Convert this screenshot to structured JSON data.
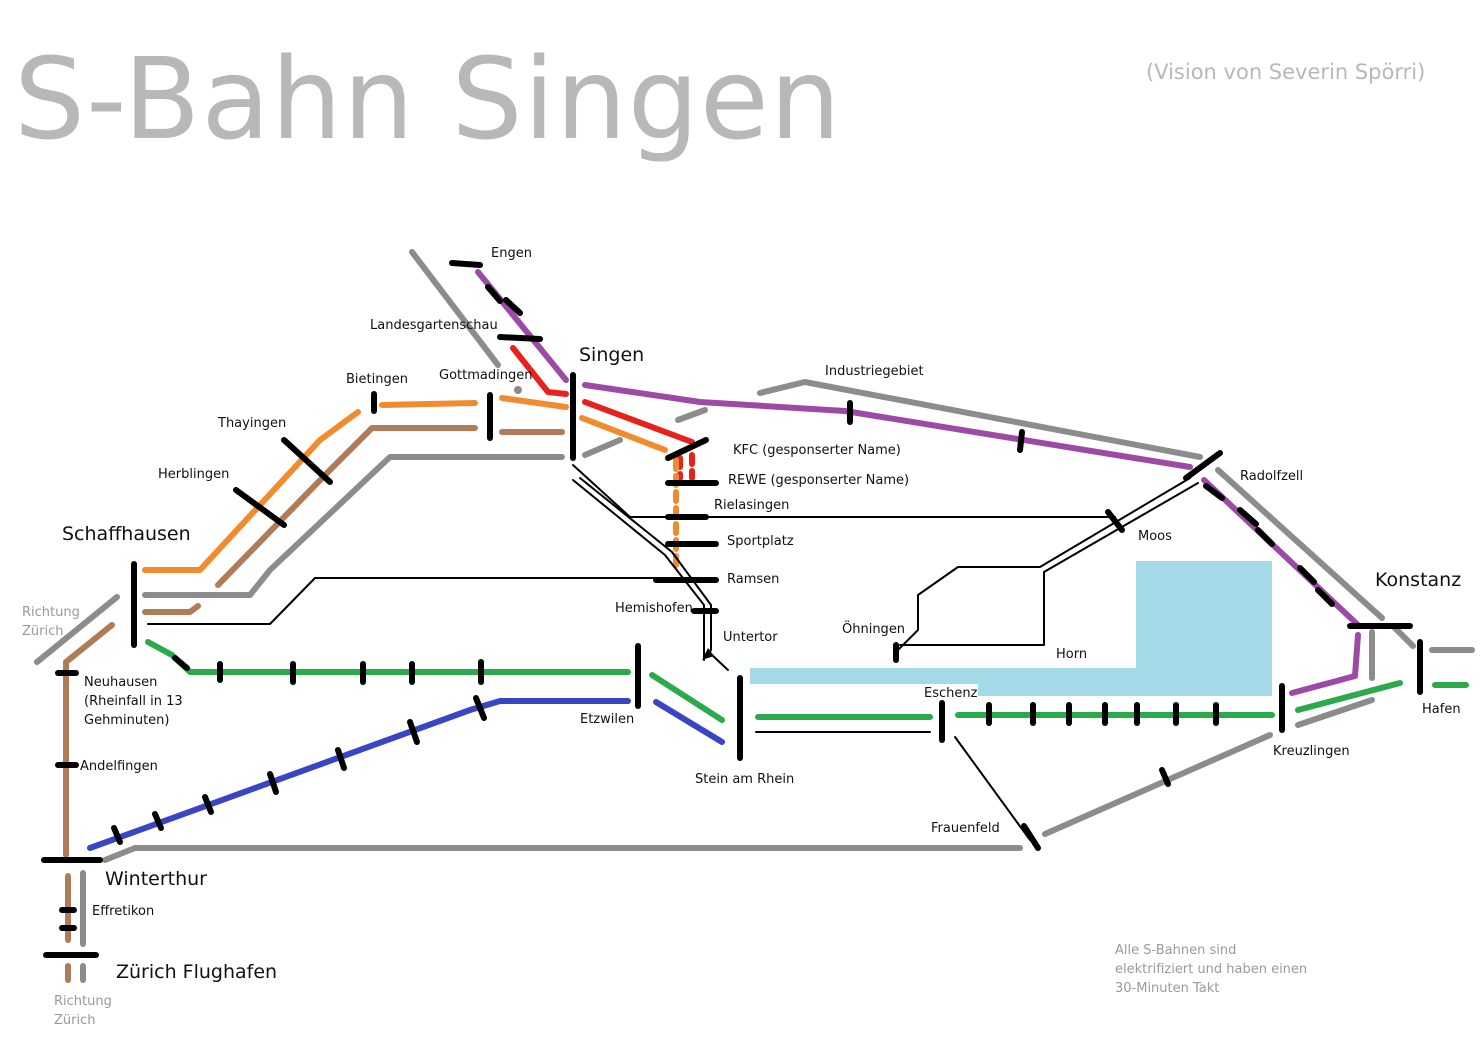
{
  "title": "S-Bahn Singen",
  "subtitle": "(Vision von Severin Spörri)",
  "note": "Alle S-Bahnen sind elektrifiziert und haben einen 30-Minuten Takt",
  "colors": {
    "purple": "#9c4aa6",
    "red": "#e8211d",
    "orange": "#f28a2e",
    "brown": "#b07b57",
    "gray": "#8c8c8c",
    "green": "#2aaa4b",
    "blue": "#3a45c6",
    "lake": "#a4d9e8",
    "station": "#000000"
  },
  "stations": {
    "engen": "Engen",
    "landesgartenschau": "Landesgartenschau",
    "singen": "Singen",
    "gottmadingen": "Gottmadingen",
    "bietingen": "Bietingen",
    "thayingen": "Thayingen",
    "herblingen": "Herblingen",
    "schaffhausen": "Schaffhausen",
    "richtung_zuerich_1": "Richtung Zürich",
    "neuhausen": "Neuhausen (Rheinfall in 13 Gehminuten)",
    "andelfingen": "Andelfingen",
    "winterthur": "Winterthur",
    "effretikon": "Effretikon",
    "zuerich_flughafen": "Zürich Flughafen",
    "richtung_zuerich_2": "Richtung Zürich",
    "industriegebiet": "Industriegebiet",
    "kfc": "KFC (gesponserter Name)",
    "rewe": "REWE (gesponserter Name)",
    "rielasingen": "Rielasingen",
    "sportplatz": "Sportplatz",
    "ramsen": "Ramsen",
    "hemishofen": "Hemishofen",
    "untertor": "Untertor",
    "etzwilen": "Etzwilen",
    "stein_am_rhein": "Stein am Rhein",
    "oehningen": "Öhningen",
    "horn": "Horn",
    "moos": "Moos",
    "radolfzell": "Radolfzell",
    "konstanz": "Konstanz",
    "hafen": "Hafen",
    "kreuzlingen": "Kreuzlingen",
    "eschenz": "Eschenz",
    "frauenfeld": "Frauenfeld"
  }
}
